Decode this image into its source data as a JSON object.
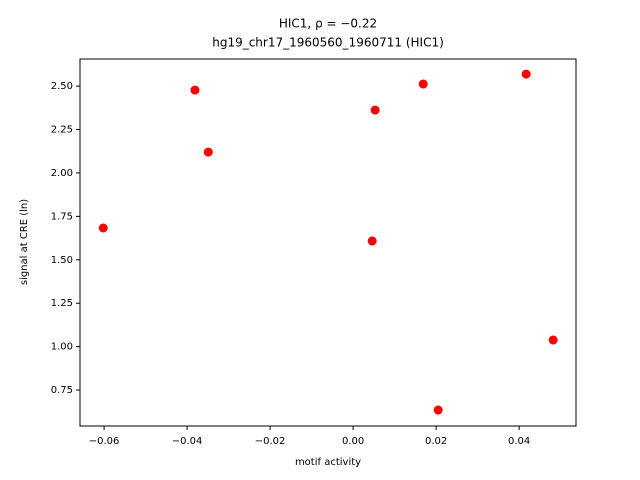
{
  "chart_data": {
    "type": "scatter",
    "title": "HIC1, ρ = −0.22",
    "subtitle": "hg19_chr17_1960560_1960711 (HIC1)",
    "x_label": "motif activity",
    "y_label": "signal at CRE (ln)",
    "color": "#ff0000",
    "x": [
      -0.0602,
      -0.0381,
      -0.0349,
      0.0053,
      0.0046,
      0.0169,
      0.0205,
      0.0417,
      0.0482
    ],
    "values": [
      1.683,
      2.477,
      2.12,
      2.362,
      1.608,
      2.512,
      0.635,
      2.569,
      1.038
    ],
    "xlim": [
      -0.0658,
      0.0537
    ],
    "ylim": [
      0.543,
      2.656
    ],
    "xticks": [
      {
        "value": -0.06,
        "label": "−0.06"
      },
      {
        "value": -0.04,
        "label": "−0.04"
      },
      {
        "value": -0.02,
        "label": "−0.02"
      },
      {
        "value": 0,
        "label": "0.00"
      },
      0.02,
      0.04
    ],
    "yticks": [
      0.75,
      {
        "value": 1,
        "label": "1.00"
      },
      1.25,
      {
        "value": 1.5,
        "label": "1.50"
      },
      1.75,
      {
        "value": 2,
        "label": "2.00"
      },
      2.25,
      {
        "value": 2.5,
        "label": "2.50"
      }
    ],
    "grid": false
  }
}
